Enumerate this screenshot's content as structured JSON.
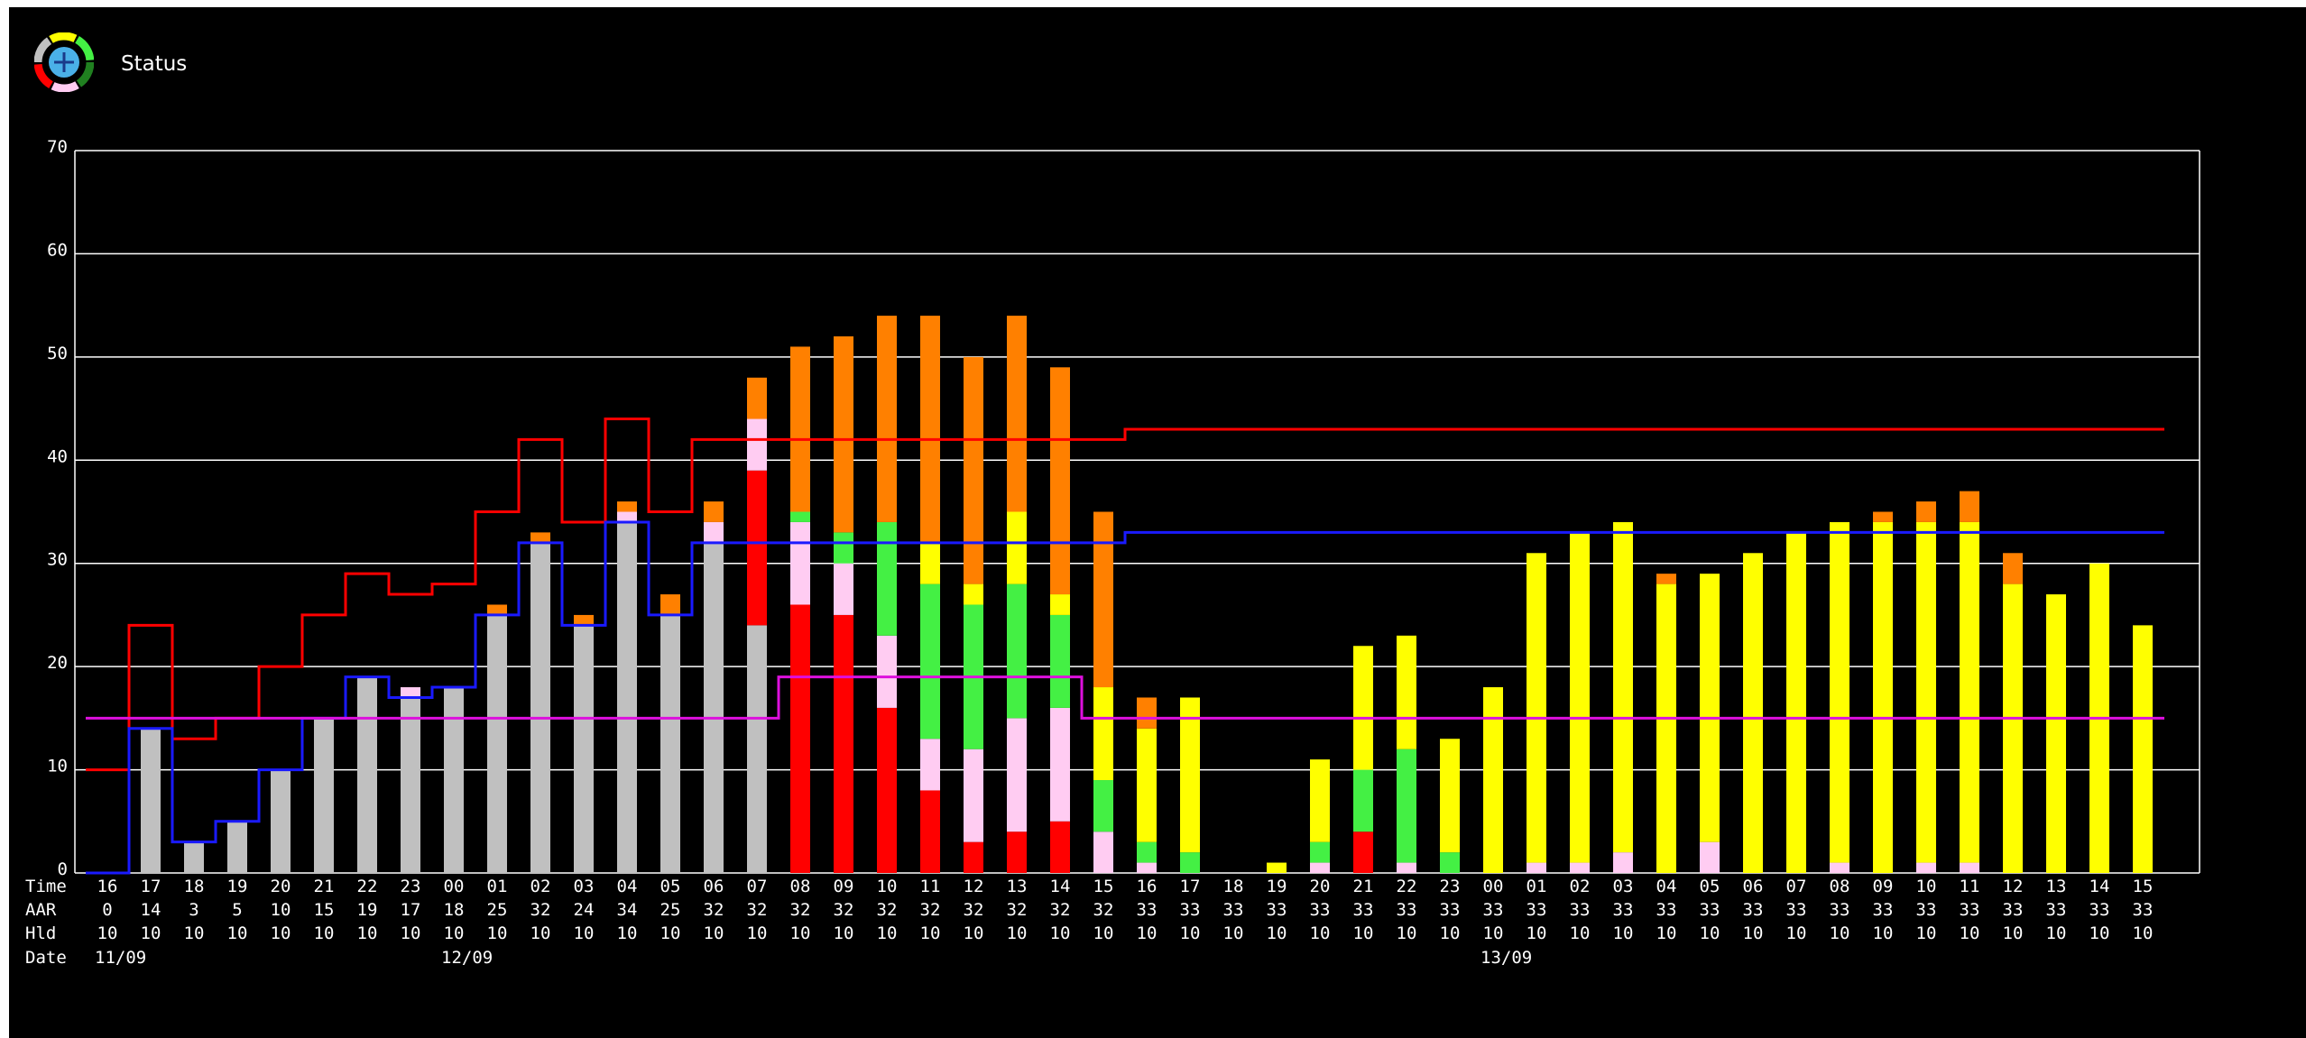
{
  "app": {
    "title": "Status"
  },
  "colors": {
    "background": "#000000",
    "grid": "#ffffff",
    "text": "#ffffff",
    "grey": "#c0c0c0",
    "red": "#ff0000",
    "pink": "#ffccf2",
    "green": "#44f044",
    "yellow": "#ffff00",
    "orange": "#ff8000",
    "line_red": "#ff0000",
    "line_blue": "#1a1aff",
    "line_magenta": "#dd10dd"
  },
  "chart_data": {
    "type": "bar",
    "stacked": true,
    "ylim": [
      0,
      70
    ],
    "yticks": [
      0,
      10,
      20,
      30,
      40,
      50,
      60,
      70
    ],
    "grid": true,
    "row_labels": [
      "Time",
      "AAR",
      "Hld",
      "Date"
    ],
    "categories": [
      "16",
      "17",
      "18",
      "19",
      "20",
      "21",
      "22",
      "23",
      "00",
      "01",
      "02",
      "03",
      "04",
      "05",
      "06",
      "07",
      "08",
      "09",
      "10",
      "11",
      "12",
      "13",
      "14",
      "15",
      "16",
      "17",
      "18",
      "19",
      "20",
      "21",
      "22",
      "23",
      "00",
      "01",
      "02",
      "03",
      "04",
      "05",
      "06",
      "07",
      "08",
      "09",
      "10",
      "11",
      "12",
      "13",
      "14",
      "15"
    ],
    "aar": [
      "0",
      "14",
      "3",
      "5",
      "10",
      "15",
      "19",
      "17",
      "18",
      "25",
      "32",
      "24",
      "34",
      "25",
      "32",
      "32",
      "32",
      "32",
      "32",
      "32",
      "32",
      "32",
      "32",
      "32",
      "33",
      "33",
      "33",
      "33",
      "33",
      "33",
      "33",
      "33",
      "33",
      "33",
      "33",
      "33",
      "33",
      "33",
      "33",
      "33",
      "33",
      "33",
      "33",
      "33",
      "33",
      "33",
      "33",
      "33"
    ],
    "hld": [
      "10",
      "10",
      "10",
      "10",
      "10",
      "10",
      "10",
      "10",
      "10",
      "10",
      "10",
      "10",
      "10",
      "10",
      "10",
      "10",
      "10",
      "10",
      "10",
      "10",
      "10",
      "10",
      "10",
      "10",
      "10",
      "10",
      "10",
      "10",
      "10",
      "10",
      "10",
      "10",
      "10",
      "10",
      "10",
      "10",
      "10",
      "10",
      "10",
      "10",
      "10",
      "10",
      "10",
      "10",
      "10",
      "10",
      "10",
      "10"
    ],
    "dates": [
      {
        "label": "11/09",
        "index": 0
      },
      {
        "label": "12/09",
        "index": 8
      },
      {
        "label": "13/09",
        "index": 32
      }
    ],
    "series": [
      {
        "color_key": "grey",
        "values": [
          0,
          14,
          3,
          5,
          10,
          15,
          19,
          17,
          18,
          25,
          32,
          24,
          34,
          25,
          32,
          24,
          0,
          0,
          0,
          0,
          0,
          0,
          0,
          0,
          0,
          0,
          0,
          0,
          0,
          0,
          0,
          0,
          0,
          0,
          0,
          0,
          0,
          0,
          0,
          0,
          0,
          0,
          0,
          0,
          0,
          0,
          0,
          0
        ]
      },
      {
        "color_key": "red",
        "values": [
          0,
          0,
          0,
          0,
          0,
          0,
          0,
          0,
          0,
          0,
          0,
          0,
          0,
          0,
          0,
          15,
          26,
          25,
          16,
          8,
          3,
          4,
          5,
          0,
          0,
          0,
          0,
          0,
          0,
          4,
          0,
          0,
          0,
          0,
          0,
          0,
          0,
          0,
          0,
          0,
          0,
          0,
          0,
          0,
          0,
          0,
          0,
          0
        ]
      },
      {
        "color_key": "pink",
        "values": [
          0,
          0,
          0,
          0,
          0,
          0,
          0,
          1,
          0,
          0,
          0,
          0,
          1,
          0,
          2,
          5,
          8,
          5,
          7,
          5,
          9,
          11,
          11,
          4,
          1,
          0,
          0,
          0,
          1,
          0,
          1,
          0,
          0,
          1,
          1,
          2,
          0,
          3,
          0,
          0,
          1,
          0,
          1,
          1,
          0,
          0,
          0,
          0
        ]
      },
      {
        "color_key": "green",
        "values": [
          0,
          0,
          0,
          0,
          0,
          0,
          0,
          0,
          0,
          0,
          0,
          0,
          0,
          0,
          0,
          0,
          1,
          3,
          11,
          15,
          14,
          13,
          9,
          5,
          2,
          2,
          0,
          0,
          2,
          6,
          11,
          2,
          0,
          0,
          0,
          0,
          0,
          0,
          0,
          0,
          0,
          0,
          0,
          0,
          0,
          0,
          0,
          0
        ]
      },
      {
        "color_key": "yellow",
        "values": [
          0,
          0,
          0,
          0,
          0,
          0,
          0,
          0,
          0,
          0,
          0,
          0,
          0,
          0,
          0,
          0,
          0,
          0,
          0,
          4,
          2,
          7,
          2,
          9,
          11,
          15,
          0,
          1,
          8,
          12,
          11,
          11,
          18,
          30,
          32,
          32,
          28,
          26,
          31,
          33,
          33,
          34,
          33,
          33,
          28,
          27,
          30,
          24
        ]
      },
      {
        "color_key": "orange",
        "values": [
          0,
          0,
          0,
          0,
          0,
          0,
          0,
          0,
          0,
          1,
          1,
          1,
          1,
          2,
          2,
          4,
          16,
          19,
          20,
          22,
          22,
          19,
          22,
          17,
          3,
          0,
          0,
          0,
          0,
          0,
          0,
          0,
          0,
          0,
          0,
          0,
          1,
          0,
          0,
          0,
          0,
          1,
          2,
          3,
          3,
          0,
          0,
          0
        ]
      }
    ],
    "lines": [
      {
        "color_key": "line_red",
        "values": [
          10,
          24,
          13,
          15,
          20,
          25,
          29,
          27,
          28,
          35,
          42,
          34,
          44,
          35,
          42,
          42,
          42,
          42,
          42,
          42,
          42,
          42,
          42,
          42,
          43,
          43,
          43,
          43,
          43,
          43,
          43,
          43,
          43,
          43,
          43,
          43,
          43,
          43,
          43,
          43,
          43,
          43,
          43,
          43,
          43,
          43,
          43,
          43
        ]
      },
      {
        "color_key": "line_blue",
        "values": [
          0,
          14,
          3,
          5,
          10,
          15,
          19,
          17,
          18,
          25,
          32,
          24,
          34,
          25,
          32,
          32,
          32,
          32,
          32,
          32,
          32,
          32,
          32,
          32,
          33,
          33,
          33,
          33,
          33,
          33,
          33,
          33,
          33,
          33,
          33,
          33,
          33,
          33,
          33,
          33,
          33,
          33,
          33,
          33,
          33,
          33,
          33,
          33
        ]
      },
      {
        "color_key": "line_magenta",
        "values": [
          15,
          15,
          15,
          15,
          15,
          15,
          15,
          15,
          15,
          15,
          15,
          15,
          15,
          15,
          15,
          15,
          19,
          19,
          19,
          19,
          19,
          19,
          19,
          15,
          15,
          15,
          15,
          15,
          15,
          15,
          15,
          15,
          15,
          15,
          15,
          15,
          15,
          15,
          15,
          15,
          15,
          15,
          15,
          15,
          15,
          15,
          15,
          15
        ]
      }
    ]
  }
}
